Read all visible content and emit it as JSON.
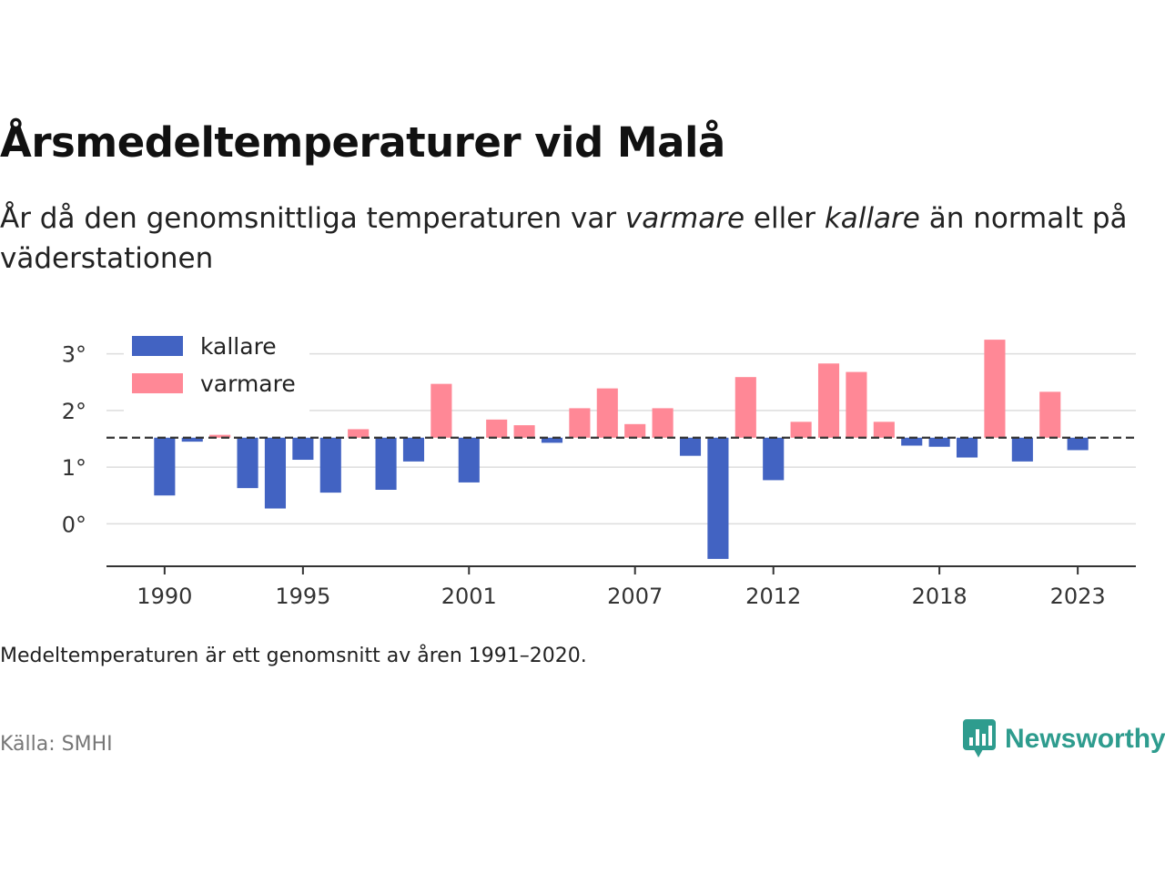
{
  "title": "Årsmedeltemperaturer vid Malå",
  "subtitle": {
    "part1": "År då den genomsnittliga temperaturen var ",
    "warm_word": "varmare",
    "part2": " eller ",
    "cold_word": "kallare",
    "part3": " än normalt på väderstationen"
  },
  "note": "Medeltemperaturen är ett genomsnitt av åren 1991–2020.",
  "source": "Källa: SMHI",
  "brand": {
    "name": "Newsworthy",
    "icon": "newsworthy-logo-icon"
  },
  "colors": {
    "colder": "#4263c2",
    "warmer": "#ff8896",
    "brand": "#2e9c8e",
    "grid": "#dddddd"
  },
  "chart_data": {
    "type": "bar",
    "baseline": 1.52,
    "baseline_style": "dashed",
    "ylim": [
      -0.75,
      3.3
    ],
    "yticks": [
      0,
      1,
      2,
      3
    ],
    "ytick_labels": [
      "0°",
      "1°",
      "2°",
      "3°"
    ],
    "xticks": [
      1990,
      1995,
      2001,
      2007,
      2012,
      2018,
      2023
    ],
    "xtick_labels": [
      "1990",
      "1995",
      "2001",
      "2007",
      "2012",
      "2018",
      "2023"
    ],
    "xlim": [
      1987.9,
      2025.1
    ],
    "grid": true,
    "legend": {
      "placement": "top-left",
      "items": [
        {
          "label": "kallare",
          "color": "#4263c2"
        },
        {
          "label": "varmare",
          "color": "#ff8896"
        }
      ]
    },
    "years": [
      1990,
      1991,
      1992,
      1993,
      1994,
      1995,
      1996,
      1997,
      1998,
      1999,
      2000,
      2001,
      2002,
      2003,
      2004,
      2005,
      2006,
      2007,
      2008,
      2009,
      2010,
      2011,
      2012,
      2013,
      2014,
      2015,
      2016,
      2017,
      2018,
      2019,
      2020,
      2021,
      2022,
      2023
    ],
    "values": [
      0.5,
      1.45,
      1.57,
      0.63,
      0.27,
      1.13,
      0.55,
      1.67,
      0.6,
      1.1,
      2.47,
      0.73,
      1.84,
      1.74,
      1.43,
      2.04,
      2.39,
      1.76,
      2.04,
      1.2,
      -0.62,
      2.59,
      0.77,
      1.8,
      2.83,
      2.68,
      1.8,
      1.38,
      1.36,
      1.17,
      3.25,
      1.1,
      2.33,
      1.3
    ]
  }
}
